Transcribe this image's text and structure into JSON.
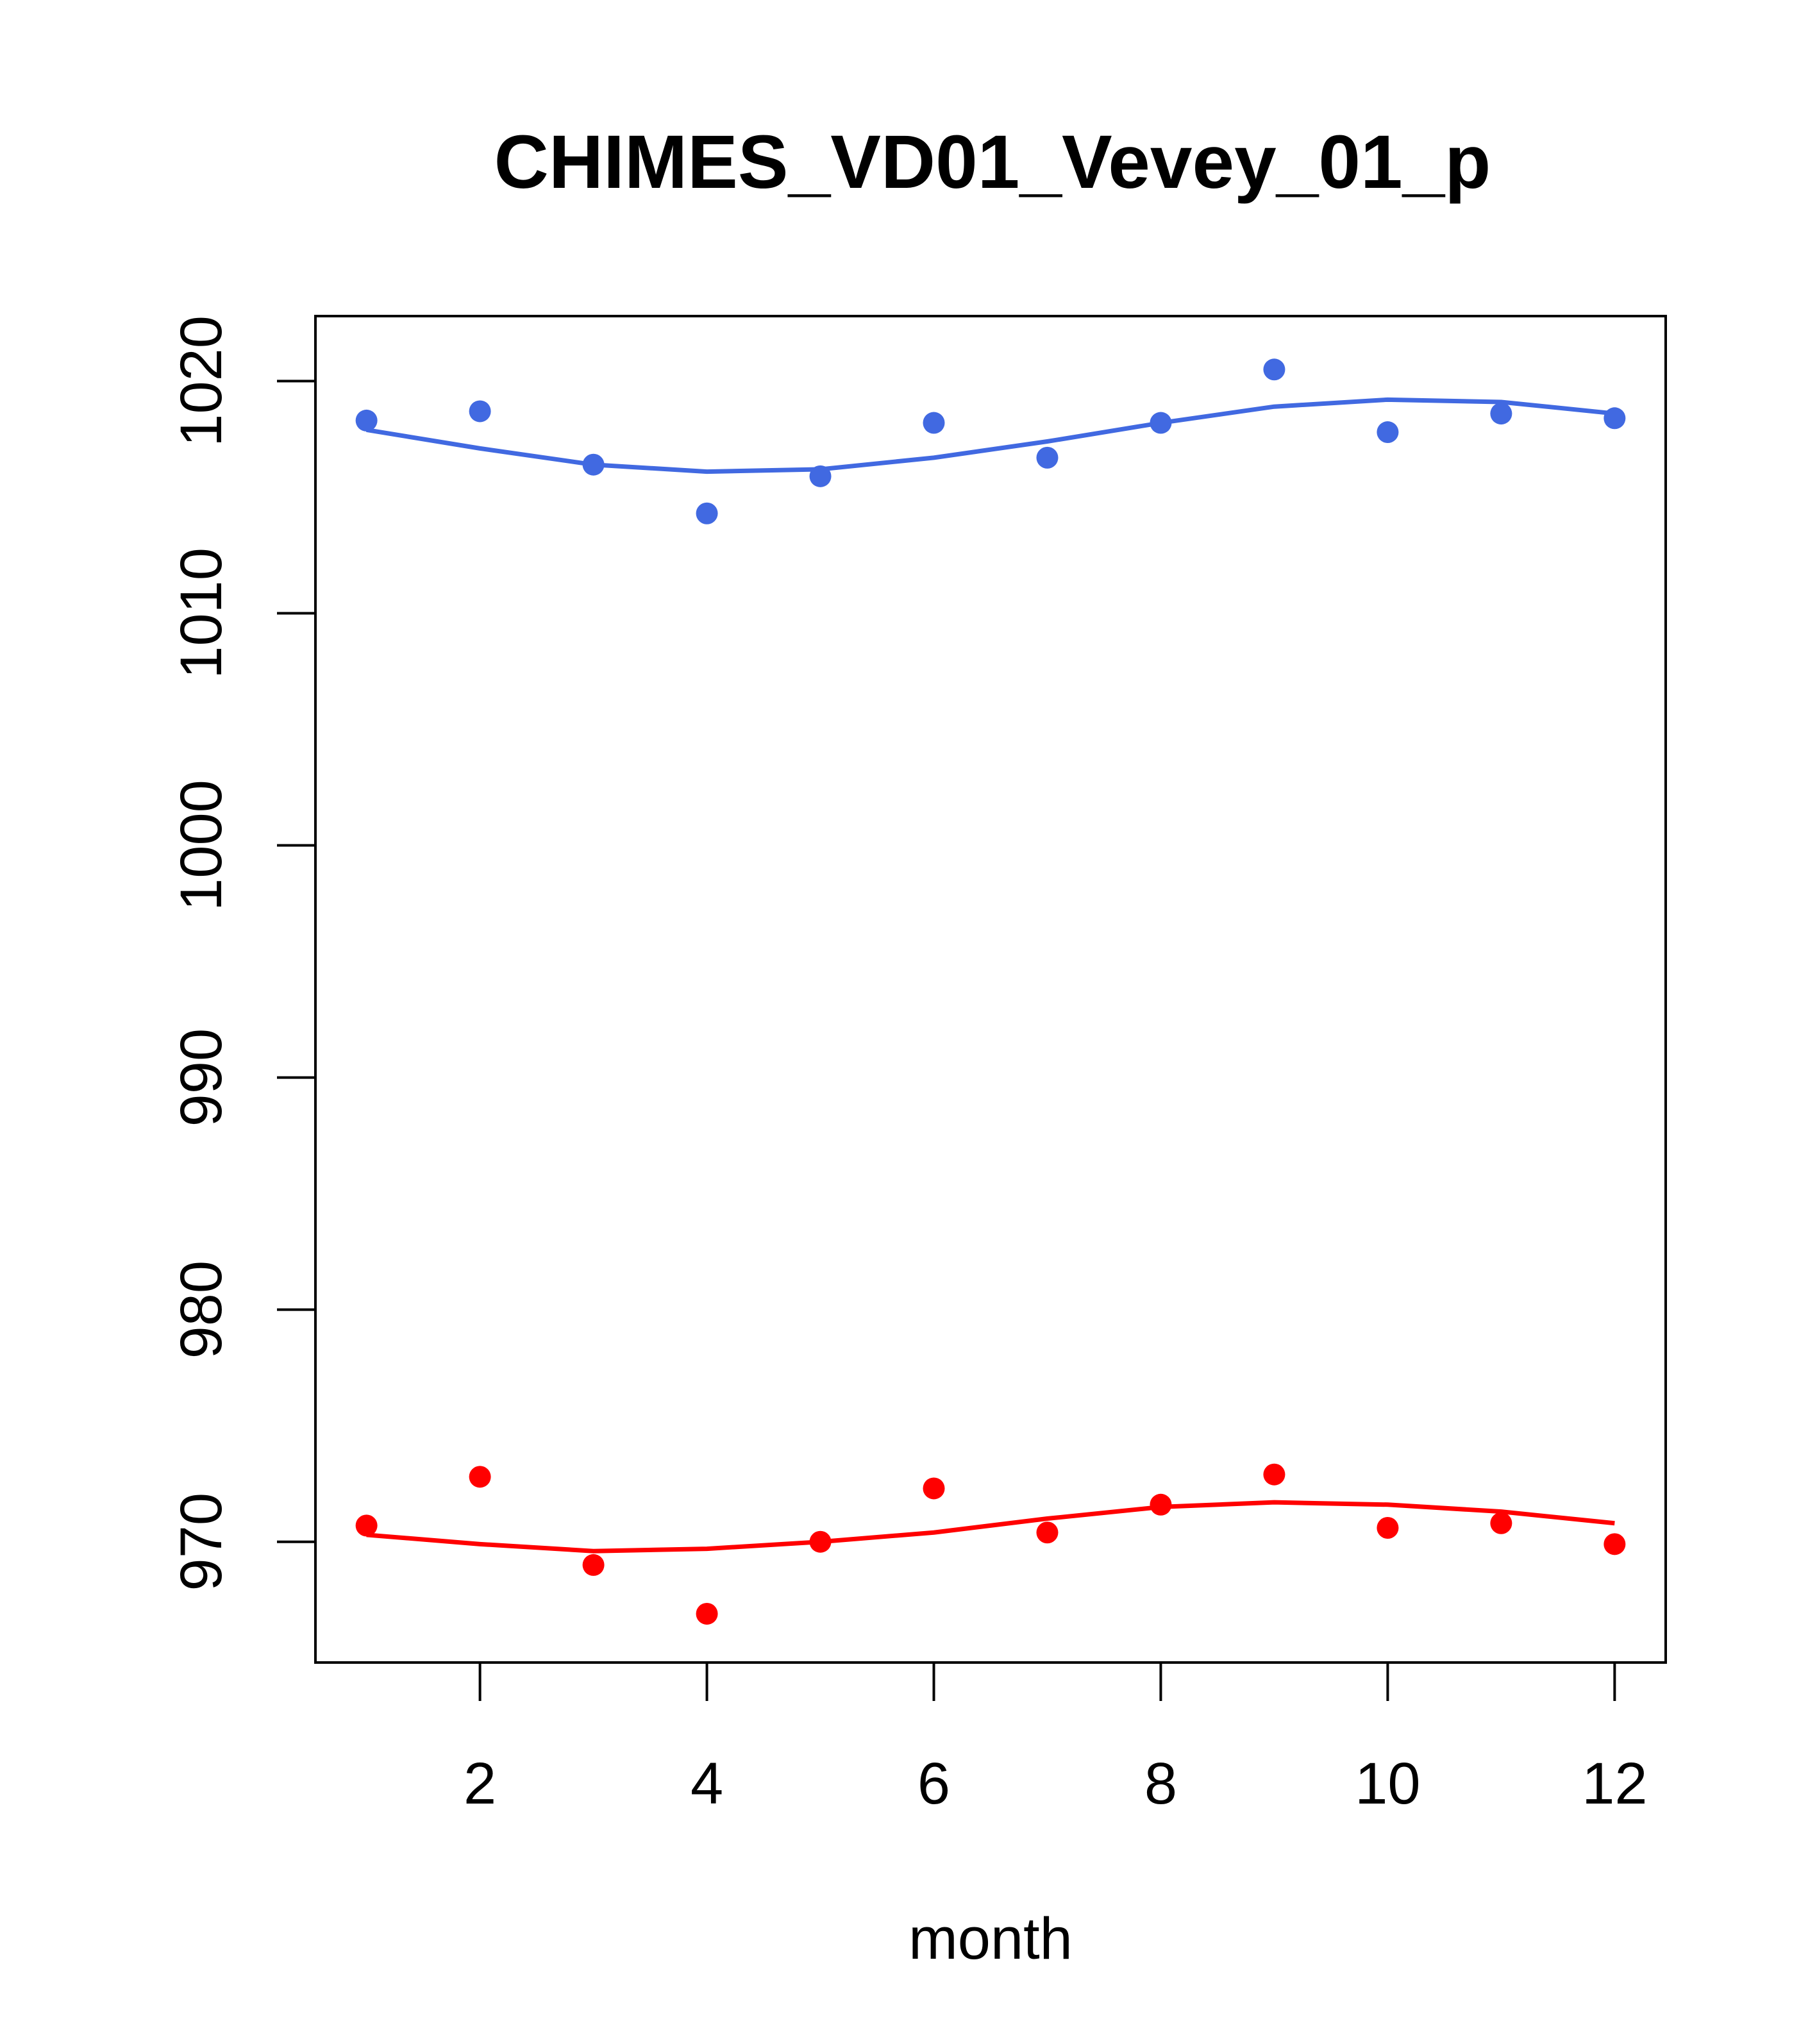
{
  "chart_data": {
    "type": "scatter",
    "title": "CHIMES_VD01_Vevey_01_p",
    "xlabel": "month",
    "ylabel": "",
    "xlim": [
      0.55,
      12.45
    ],
    "ylim": [
      964.8,
      1022.8
    ],
    "xticks": [
      2,
      4,
      6,
      8,
      10,
      12
    ],
    "yticks": [
      970,
      980,
      990,
      1000,
      1010,
      1020
    ],
    "grid": false,
    "series": [
      {
        "color": "#4169e1",
        "x": [
          1,
          2,
          3,
          4,
          5,
          6,
          7,
          8,
          9,
          10,
          11,
          12
        ],
        "points": [
          1018.3,
          1018.7,
          1016.4,
          1014.3,
          1015.9,
          1018.2,
          1016.7,
          1018.2,
          1020.5,
          1017.8,
          1018.6,
          1018.4
        ],
        "smooth": [
          1017.9,
          1017.1,
          1016.4,
          1016.1,
          1016.2,
          1016.7,
          1017.4,
          1018.2,
          1018.9,
          1019.2,
          1019.1,
          1018.6
        ]
      },
      {
        "color": "#ff0000",
        "x": [
          1,
          2,
          3,
          4,
          5,
          6,
          7,
          8,
          9,
          10,
          11,
          12
        ],
        "points": [
          970.7,
          972.8,
          969.0,
          966.9,
          970.0,
          972.3,
          970.4,
          971.6,
          972.9,
          970.6,
          970.8,
          969.9
        ],
        "smooth": [
          970.3,
          969.9,
          969.6,
          969.7,
          970.0,
          970.4,
          971.0,
          971.5,
          971.7,
          971.6,
          971.3,
          970.8
        ]
      }
    ]
  }
}
